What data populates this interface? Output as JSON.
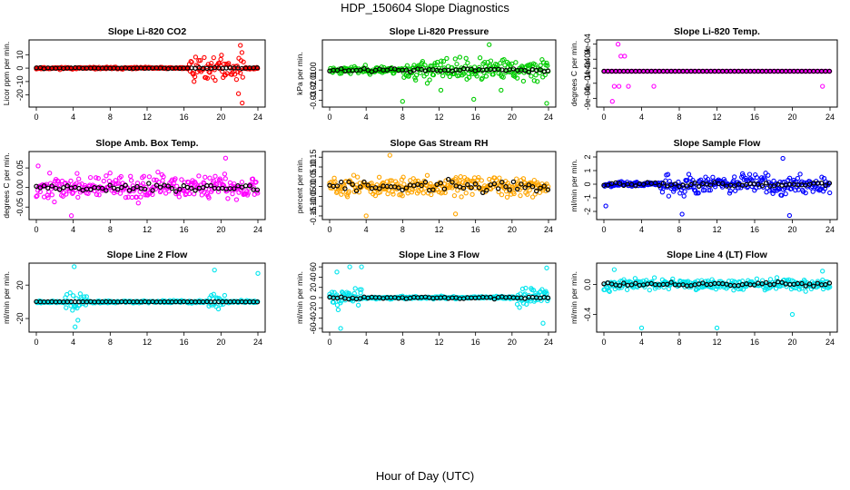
{
  "title": "HDP_150604  Slope Diagnostics",
  "xlabel": "Hour of Day (UTC)",
  "chart_data": [
    {
      "type": "scatter",
      "title": "Slope Li-820 CO2",
      "ylabel": "Licor ppm per min.",
      "color": "#ff0000",
      "xlim": [
        0,
        24
      ],
      "ylim": [
        -27,
        19
      ],
      "xticks": [
        0,
        4,
        8,
        12,
        16,
        20,
        24
      ],
      "yticks": [
        -20,
        -10,
        0,
        10
      ],
      "ytick_labels": [
        "-20",
        "-10",
        "0",
        "10"
      ],
      "seed": 11,
      "spread": 1.2,
      "burst": {
        "from": 16.5,
        "to": 22.5,
        "amp": 14
      },
      "outliers": [
        [
          22.1,
          17
        ],
        [
          22.3,
          -26
        ],
        [
          21.9,
          -19
        ]
      ],
      "black_amp": 0.6
    },
    {
      "type": "scatter",
      "title": "Slope Li-820 Pressure",
      "ylabel": "kPa per min.",
      "color": "#00cc00",
      "xlim": [
        0,
        24
      ],
      "ylim": [
        -0.034,
        0.027
      ],
      "xticks": [
        0,
        4,
        8,
        12,
        16,
        20,
        24
      ],
      "yticks": [
        -0.03,
        -0.02,
        -0.01,
        0.0
      ],
      "ytick_labels": [
        "-0.03",
        "-0.02",
        "-0.01",
        "0.00"
      ],
      "seed": 23,
      "spread": 0.006,
      "burst": {
        "from": 8,
        "to": 24,
        "amp": 0.011
      },
      "outliers": [
        [
          17.5,
          0.025
        ],
        [
          23.8,
          -0.033
        ],
        [
          8,
          -0.031
        ],
        [
          12.2,
          -0.02
        ],
        [
          15.8,
          -0.029
        ],
        [
          18.8,
          -0.02
        ]
      ],
      "black_amp": 0.003
    },
    {
      "type": "scatter",
      "title": "Slope Li-820 Temp.",
      "ylabel": "degrees C per min.",
      "color": "#ff00ff",
      "xlim": [
        0,
        24
      ],
      "ylim": [
        -0.0011,
        0.00095
      ],
      "xticks": [
        0,
        4,
        8,
        12,
        16,
        20,
        24
      ],
      "yticks": [
        -0.0009,
        -0.0004,
        0.0001,
        0.0004,
        0.0009
      ],
      "ytick_labels": [
        "-9e-04",
        "-4e-04",
        "1e-04",
        "4e-04",
        "9e-04"
      ],
      "seed": 5,
      "spread": 0.0,
      "burst": {
        "from": 0,
        "to": 0,
        "amp": 0
      },
      "outliers": [
        [
          1.5,
          0.0009
        ],
        [
          1.8,
          0.0005
        ],
        [
          2.2,
          0.0005
        ],
        [
          1.1,
          -0.0005
        ],
        [
          1.6,
          -0.0005
        ],
        [
          2.6,
          -0.0005
        ],
        [
          0.9,
          -0.001
        ],
        [
          5.3,
          -0.0005
        ],
        [
          23.2,
          -0.0005
        ]
      ],
      "black_amp": 0.0
    },
    {
      "type": "scatter",
      "title": "Slope Amb. Box Temp.",
      "ylabel": "degrees C per min.",
      "color": "#ff00ff",
      "xlim": [
        0,
        24
      ],
      "ylim": [
        -0.075,
        0.085
      ],
      "xticks": [
        0,
        4,
        8,
        12,
        16,
        20,
        24
      ],
      "yticks": [
        -0.05,
        0.0,
        0.05
      ],
      "ytick_labels": [
        "-0.05",
        "0.00",
        "0.05"
      ],
      "seed": 37,
      "spread": 0.03,
      "burst": {
        "from": 0,
        "to": 24,
        "amp": 0.02
      },
      "outliers": [
        [
          0.2,
          0.055
        ],
        [
          3.8,
          -0.072
        ],
        [
          20.5,
          0.075
        ]
      ],
      "black_amp": 0.02
    },
    {
      "type": "scatter",
      "title": "Slope Gas Stream RH",
      "ylabel": "percent per min.",
      "color": "#ffa500",
      "xlim": [
        0,
        24
      ],
      "ylim": [
        -0.155,
        0.165
      ],
      "xticks": [
        0,
        4,
        8,
        12,
        16,
        20,
        24
      ],
      "yticks": [
        -0.15,
        -0.1,
        -0.05,
        0.0,
        0.05,
        0.1,
        0.15
      ],
      "ytick_labels": [
        "-0.15",
        "-0.10",
        "-0.05",
        "0.00",
        "0.05",
        "0.10",
        "0.15"
      ],
      "seed": 51,
      "spread": 0.05,
      "burst": {
        "from": 0,
        "to": 24,
        "amp": 0.03
      },
      "outliers": [
        [
          4,
          -0.15
        ],
        [
          6.6,
          0.16
        ],
        [
          13.8,
          -0.14
        ]
      ],
      "black_amp": 0.05
    },
    {
      "type": "scatter",
      "title": "Slope Sample Flow",
      "ylabel": "ml/min per min.",
      "color": "#0000ff",
      "xlim": [
        0,
        24
      ],
      "ylim": [
        -2.4,
        2.2
      ],
      "xticks": [
        0,
        4,
        8,
        12,
        16,
        20,
        24
      ],
      "yticks": [
        -2,
        -1,
        0,
        1,
        2
      ],
      "ytick_labels": [
        "-2",
        "-1",
        "0",
        "1",
        "2"
      ],
      "seed": 67,
      "spread": 0.3,
      "burst": {
        "from": 6,
        "to": 24,
        "amp": 0.9
      },
      "outliers": [
        [
          8.3,
          -2.2
        ],
        [
          19.7,
          -2.3
        ],
        [
          0.2,
          -1.6
        ],
        [
          19,
          1.9
        ]
      ],
      "black_amp": 0.25
    },
    {
      "type": "scatter",
      "title": "Slope Line 2 Flow",
      "ylabel": "ml/min per min.",
      "color": "#00e5ee",
      "xlim": [
        0,
        24
      ],
      "ylim": [
        -33,
        43
      ],
      "xticks": [
        0,
        4,
        8,
        12,
        16,
        20,
        24
      ],
      "yticks": [
        -20,
        20
      ],
      "ytick_labels": [
        "-20",
        "20"
      ],
      "seed": 79,
      "spread": 2.5,
      "burst": {
        "from": 3,
        "to": 5.5,
        "amp": 15
      },
      "burst2": {
        "from": 18.5,
        "to": 20.5,
        "amp": 15
      },
      "outliers": [
        [
          4.1,
          42
        ],
        [
          4.2,
          -30
        ],
        [
          19.3,
          38
        ],
        [
          24,
          34
        ],
        [
          4.5,
          -22
        ]
      ],
      "black_amp": 0.3
    },
    {
      "type": "scatter",
      "title": "Slope Line 3 Flow",
      "ylabel": "ml/min per min.",
      "color": "#00e5ee",
      "xlim": [
        0,
        24
      ],
      "ylim": [
        -62,
        62
      ],
      "xticks": [
        0,
        4,
        8,
        12,
        16,
        20,
        24
      ],
      "yticks": [
        -60,
        -40,
        -20,
        0,
        20,
        40,
        60
      ],
      "ytick_labels": [
        "-60",
        "-40",
        "-20",
        "0",
        "20",
        "40",
        "60"
      ],
      "seed": 83,
      "spread": 4,
      "burst": {
        "from": 0,
        "to": 3.5,
        "amp": 25
      },
      "burst2": {
        "from": 20.5,
        "to": 24,
        "amp": 30
      },
      "outliers": [
        [
          2.2,
          60
        ],
        [
          3.5,
          60
        ],
        [
          1.2,
          -60
        ],
        [
          23.8,
          58
        ],
        [
          0.8,
          50
        ],
        [
          23.4,
          -50
        ]
      ],
      "black_amp": 4
    },
    {
      "type": "scatter",
      "title": "Slope Line 4 (LT) Flow",
      "ylabel": "ml/min per min.",
      "color": "#00e5ee",
      "xlim": [
        0,
        24
      ],
      "ylim": [
        -0.6,
        0.25
      ],
      "xticks": [
        0,
        4,
        8,
        12,
        16,
        20,
        24
      ],
      "yticks": [
        -0.4,
        0.0
      ],
      "ytick_labels": [
        "-0.4",
        "0.0"
      ],
      "seed": 97,
      "spread": 0.06,
      "burst": {
        "from": 0,
        "to": 24,
        "amp": 0.06
      },
      "outliers": [
        [
          4,
          -0.58
        ],
        [
          12,
          -0.58
        ],
        [
          20,
          -0.4
        ],
        [
          1.1,
          0.2
        ],
        [
          23.2,
          0.18
        ]
      ],
      "black_amp": 0.05
    }
  ]
}
